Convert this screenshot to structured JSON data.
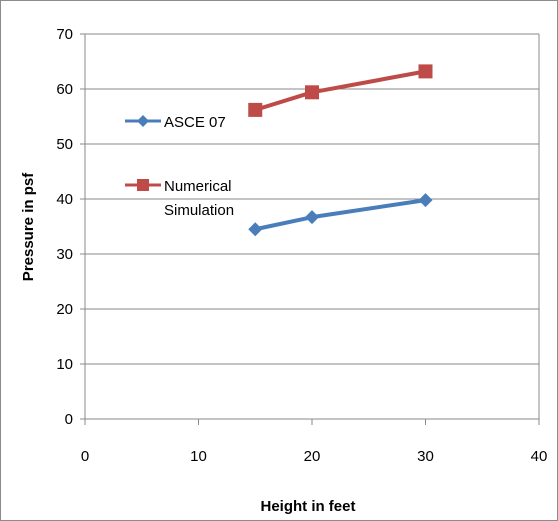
{
  "chart_data": {
    "type": "line",
    "title": "",
    "xlabel": "Height in feet",
    "ylabel": "Pressure in psf",
    "xlim": [
      0,
      40
    ],
    "ylim": [
      0,
      70
    ],
    "x_ticks": [
      0,
      10,
      20,
      30,
      40
    ],
    "y_ticks": [
      0,
      10,
      20,
      30,
      40,
      50,
      60,
      70
    ],
    "grid": "horizontal",
    "legend_position": "left, inside plot",
    "series": [
      {
        "name": "ASCE 07",
        "color": "#4a7ebb",
        "marker": "diamond",
        "x": [
          15,
          20,
          30
        ],
        "y": [
          34.5,
          36.7,
          39.8
        ]
      },
      {
        "name": "Numerical Simulation",
        "color": "#be4b48",
        "marker": "square",
        "x": [
          15,
          20,
          30
        ],
        "y": [
          56.2,
          59.4,
          63.2
        ]
      }
    ]
  }
}
